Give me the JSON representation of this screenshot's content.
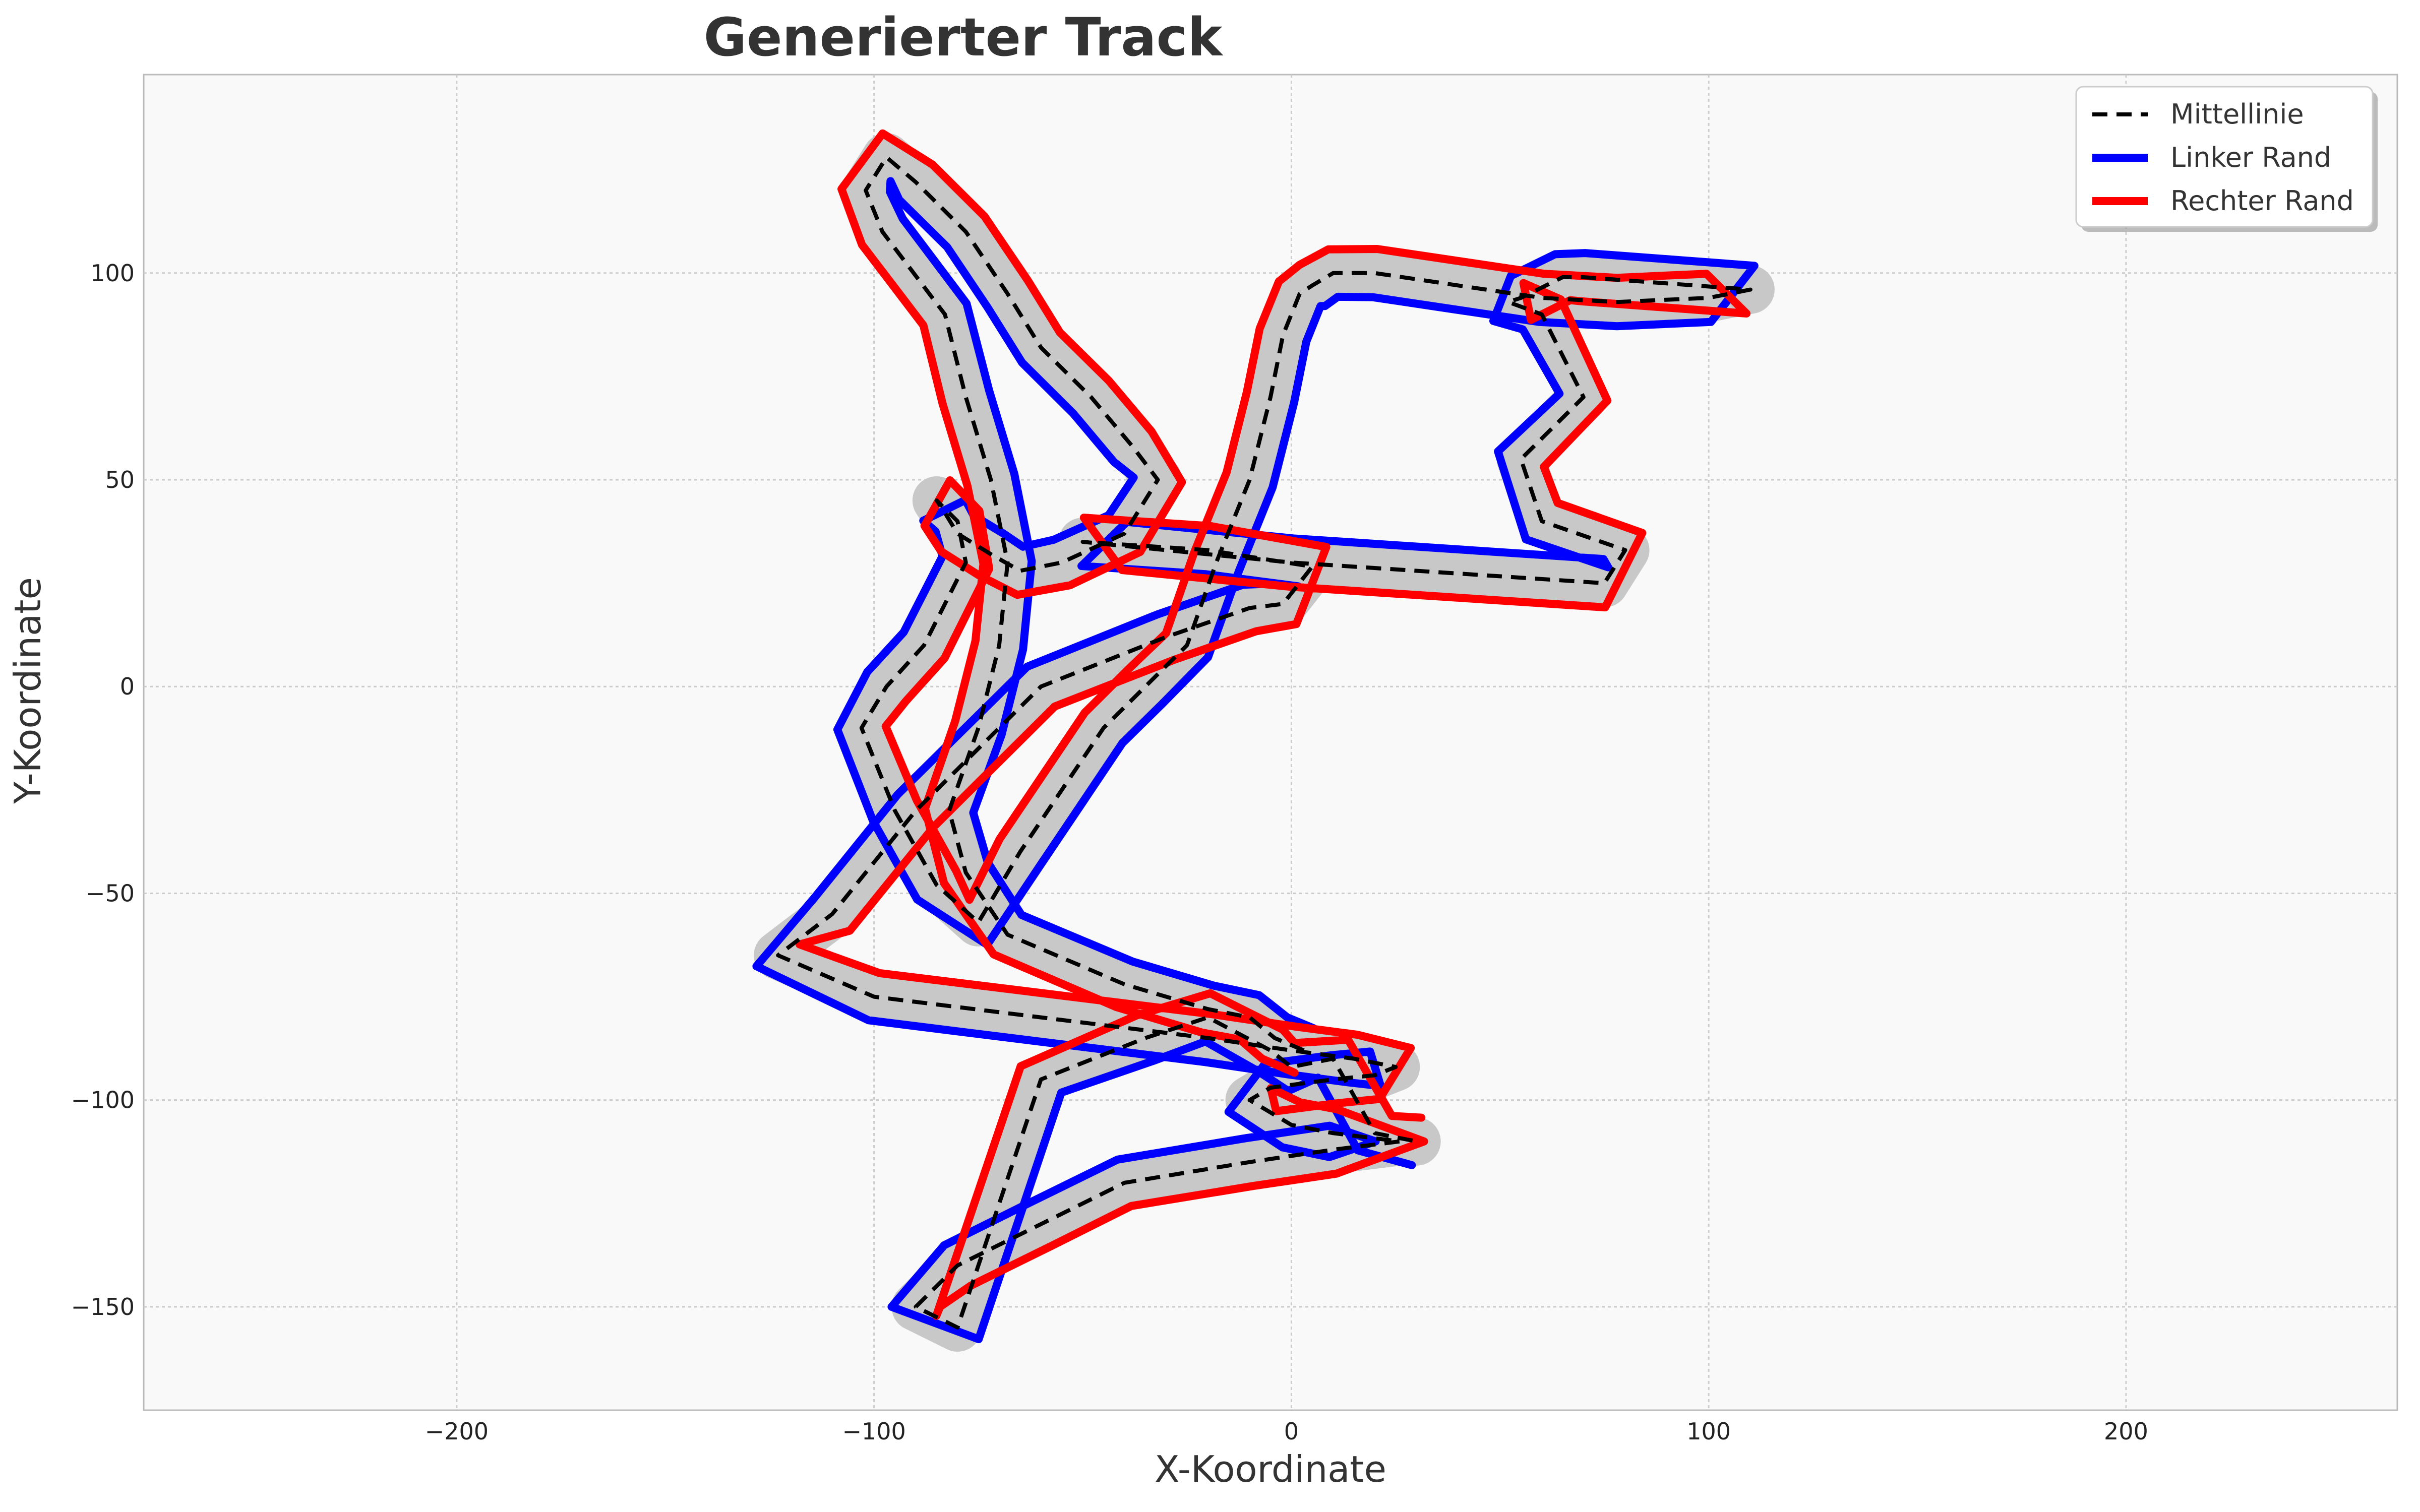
{
  "chart_data": {
    "type": "line",
    "title": "Generierter Track",
    "xlabel": "X-Koordinate",
    "ylabel": "Y-Koordinate",
    "xlim": [
      -275,
      265
    ],
    "ylim": [
      -175,
      148
    ],
    "x_ticks": [
      -200,
      -100,
      0,
      100,
      200
    ],
    "y_ticks": [
      -150,
      -100,
      -50,
      0,
      50,
      100
    ],
    "x_tick_labels": [
      "−200",
      "−100",
      "0",
      "100",
      "200"
    ],
    "y_tick_labels": [
      "−150",
      "−100",
      "−50",
      "0",
      "50",
      "100"
    ],
    "grid": true,
    "legend_position": "top-right",
    "colors": {
      "centerline": "#000000",
      "left_edge": "#0000ff",
      "right_edge": "#ff0000",
      "track_surface": "#c8c8c8",
      "plot_background": "#f9f9f9"
    },
    "series": [
      {
        "name": "Mittellinie",
        "style": "dashed",
        "color": "#000000",
        "x": [
          3,
          -4,
          -10,
          -20,
          -40,
          -68,
          -78,
          -82,
          -75,
          -70,
          -68,
          -72,
          -78,
          -83,
          -98,
          -102,
          -97,
          -90,
          -78,
          -68,
          -60,
          -48,
          -38,
          -32,
          -40,
          -55,
          -65,
          -72,
          -80,
          -83,
          -85,
          -80,
          -78,
          -88,
          -97,
          -103,
          -95,
          -85,
          -75,
          -65,
          -55,
          -45,
          -35,
          -25,
          -18,
          -10,
          -5,
          -2,
          2,
          5,
          10,
          20,
          40,
          60,
          78,
          100,
          110,
          70,
          65,
          55,
          52,
          60,
          70,
          55,
          60,
          80,
          75,
          0,
          -40,
          -50,
          -20,
          5,
          -2,
          -10,
          -30,
          -60,
          -90,
          -110,
          -123,
          -100,
          -60,
          -20,
          0,
          15,
          25,
          20,
          10,
          -5,
          -10,
          0,
          10,
          26,
          10,
          -10,
          -40,
          -60,
          -80,
          -90,
          -80,
          -60,
          -35,
          -20,
          -5,
          0,
          10,
          20,
          30
        ],
        "y": [
          -88,
          -85,
          -80,
          -78,
          -72,
          -60,
          -45,
          -30,
          -10,
          10,
          30,
          50,
          70,
          90,
          110,
          120,
          128,
          122,
          110,
          95,
          82,
          70,
          58,
          50,
          37,
          30,
          28,
          32,
          37,
          42,
          45,
          40,
          30,
          10,
          0,
          -10,
          -30,
          -48,
          -57,
          -40,
          -25,
          -10,
          0,
          10,
          30,
          50,
          70,
          85,
          95,
          97,
          100,
          100,
          97,
          94,
          93,
          94,
          96,
          99,
          99,
          94,
          93,
          90,
          70,
          55,
          40,
          33,
          25,
          30,
          34,
          35,
          33,
          29,
          20,
          19,
          12,
          0,
          -30,
          -55,
          -65,
          -75,
          -80,
          -85,
          -88,
          -90,
          -92,
          -94,
          -95,
          -97,
          -100,
          -106,
          -108,
          -110,
          -112,
          -115,
          -120,
          -130,
          -140,
          -150,
          -155,
          -95,
          -85,
          -80,
          -88,
          -92,
          -90,
          -108,
          -110
        ],
        "dash": "30 18"
      }
    ],
    "legend": [
      {
        "label": "Mittellinie",
        "color": "#000000",
        "style": "dashed"
      },
      {
        "label": "Linker Rand",
        "color": "#0000ff",
        "style": "solid"
      },
      {
        "label": "Rechter Rand",
        "color": "#ff0000",
        "style": "solid"
      }
    ]
  }
}
